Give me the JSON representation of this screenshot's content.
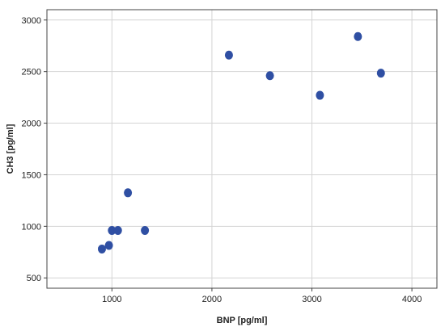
{
  "chart_data": {
    "type": "scatter",
    "xlabel": "BNP [pg/ml]",
    "ylabel": "CH3 [pg/ml]",
    "xlim": [
      350,
      4250
    ],
    "ylim": [
      400,
      3100
    ],
    "xticks": [
      1000,
      2000,
      3000,
      4000
    ],
    "yticks": [
      500,
      1000,
      1500,
      2000,
      2500,
      3000
    ],
    "xtick_labels": [
      "1000",
      "2000",
      "3000",
      "4000"
    ],
    "ytick_labels": [
      "500",
      "1000",
      "1500",
      "2000",
      "2500",
      "3000"
    ],
    "grid": true,
    "marker_color": "#2f4fa3",
    "points": [
      {
        "x": 900,
        "y": 780
      },
      {
        "x": 970,
        "y": 815
      },
      {
        "x": 1000,
        "y": 960
      },
      {
        "x": 1060,
        "y": 960
      },
      {
        "x": 1160,
        "y": 1325
      },
      {
        "x": 1330,
        "y": 960
      },
      {
        "x": 2170,
        "y": 2660
      },
      {
        "x": 2580,
        "y": 2460
      },
      {
        "x": 3080,
        "y": 2270
      },
      {
        "x": 3460,
        "y": 2840
      },
      {
        "x": 3690,
        "y": 2485
      }
    ]
  }
}
